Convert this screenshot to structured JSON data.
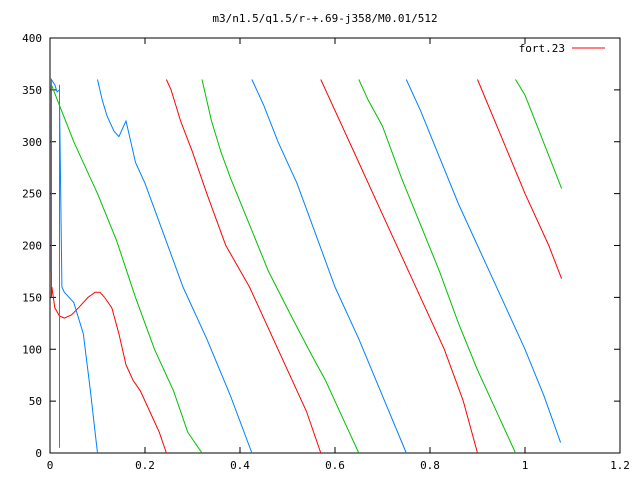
{
  "chart_data": {
    "type": "line",
    "title": "m3/n1.5/q1.5/r-+.69-j358/M0.01/512",
    "xlabel": "",
    "ylabel": "",
    "xlim": [
      0,
      1.2
    ],
    "ylim": [
      0,
      400
    ],
    "xticks": [
      0,
      0.2,
      0.4,
      0.6,
      0.8,
      1,
      1.2
    ],
    "xtick_labels": [
      "0",
      "0.2",
      "0.4",
      "0.6",
      "0.8",
      "1",
      "1.2"
    ],
    "yticks": [
      0,
      50,
      100,
      150,
      200,
      250,
      300,
      350,
      400
    ],
    "ytick_labels": [
      "0",
      "50",
      "100",
      "150",
      "200",
      "250",
      "300",
      "350",
      "400"
    ],
    "grid": false,
    "legend_position": "top-right",
    "series": [
      {
        "name": "fort.23",
        "color": "#ff0000",
        "points": [
          [
            0.003,
            355
          ],
          [
            0.003,
            150
          ],
          [
            0.004,
            160
          ],
          [
            0.01,
            140
          ],
          [
            0.02,
            132
          ],
          [
            0.03,
            130
          ],
          [
            0.045,
            133
          ],
          [
            0.06,
            140
          ],
          [
            0.08,
            150
          ],
          [
            0.095,
            155
          ],
          [
            0.105,
            155
          ],
          [
            0.115,
            150
          ],
          [
            0.13,
            140
          ],
          [
            0.145,
            115
          ],
          [
            0.16,
            85
          ],
          [
            0.175,
            70
          ],
          [
            0.19,
            60
          ],
          [
            0.21,
            40
          ],
          [
            0.23,
            20
          ],
          [
            0.245,
            0
          ],
          null,
          [
            0.245,
            360
          ],
          [
            0.255,
            350
          ],
          [
            0.275,
            320
          ],
          [
            0.3,
            290
          ],
          [
            0.33,
            250
          ],
          [
            0.37,
            200
          ],
          [
            0.42,
            160
          ],
          [
            0.48,
            100
          ],
          [
            0.54,
            40
          ],
          [
            0.57,
            0
          ],
          null,
          [
            0.57,
            360
          ],
          [
            0.585,
            345
          ],
          [
            0.61,
            320
          ],
          [
            0.65,
            280
          ],
          [
            0.7,
            230
          ],
          [
            0.76,
            170
          ],
          [
            0.83,
            100
          ],
          [
            0.87,
            50
          ],
          [
            0.9,
            0
          ],
          null,
          [
            0.9,
            360
          ],
          [
            0.95,
            305
          ],
          [
            1.0,
            250
          ],
          [
            1.05,
            200
          ],
          [
            1.077,
            168
          ]
        ]
      },
      {
        "name": "",
        "color": "#00c000",
        "points": [
          [
            0.003,
            355
          ],
          [
            0.02,
            335
          ],
          [
            0.05,
            300
          ],
          [
            0.08,
            270
          ],
          [
            0.1,
            250
          ],
          [
            0.14,
            205
          ],
          [
            0.18,
            150
          ],
          [
            0.22,
            100
          ],
          [
            0.26,
            60
          ],
          [
            0.29,
            20
          ],
          [
            0.32,
            0
          ],
          null,
          [
            0.32,
            360
          ],
          [
            0.34,
            320
          ],
          [
            0.36,
            290
          ],
          [
            0.38,
            265
          ],
          [
            0.42,
            220
          ],
          [
            0.46,
            175
          ],
          [
            0.51,
            130
          ],
          [
            0.55,
            95
          ],
          [
            0.58,
            70
          ],
          [
            0.62,
            30
          ],
          [
            0.65,
            0
          ],
          null,
          [
            0.65,
            360
          ],
          [
            0.67,
            340
          ],
          [
            0.7,
            315
          ],
          [
            0.74,
            265
          ],
          [
            0.78,
            220
          ],
          [
            0.82,
            175
          ],
          [
            0.86,
            125
          ],
          [
            0.9,
            80
          ],
          [
            0.95,
            30
          ],
          [
            0.98,
            0
          ],
          null,
          [
            0.98,
            360
          ],
          [
            1.0,
            345
          ],
          [
            1.03,
            310
          ],
          [
            1.06,
            275
          ],
          [
            1.077,
            255
          ]
        ]
      },
      {
        "name": "",
        "color": "#0080ff",
        "points": [
          [
            0.003,
            175
          ],
          [
            0.003,
            360
          ],
          [
            0.01,
            355
          ],
          [
            0.015,
            348
          ],
          [
            0.02,
            350
          ],
          [
            0.02,
            340
          ],
          [
            0.025,
            160
          ],
          [
            0.03,
            155
          ],
          [
            0.05,
            145
          ],
          [
            0.07,
            115
          ],
          [
            0.085,
            60
          ],
          [
            0.095,
            20
          ],
          [
            0.1,
            0
          ],
          null,
          [
            0.1,
            360
          ],
          [
            0.11,
            340
          ],
          [
            0.12,
            325
          ],
          [
            0.135,
            310
          ],
          [
            0.145,
            305
          ],
          [
            0.155,
            315
          ],
          [
            0.16,
            320
          ],
          [
            0.17,
            300
          ],
          [
            0.18,
            280
          ],
          [
            0.2,
            260
          ],
          [
            0.24,
            210
          ],
          [
            0.28,
            160
          ],
          [
            0.33,
            110
          ],
          [
            0.38,
            55
          ],
          [
            0.425,
            0
          ],
          null,
          [
            0.425,
            360
          ],
          [
            0.45,
            335
          ],
          [
            0.48,
            300
          ],
          [
            0.52,
            260
          ],
          [
            0.56,
            210
          ],
          [
            0.6,
            160
          ],
          [
            0.65,
            110
          ],
          [
            0.7,
            55
          ],
          [
            0.75,
            0
          ],
          null,
          [
            0.75,
            360
          ],
          [
            0.78,
            330
          ],
          [
            0.82,
            285
          ],
          [
            0.86,
            240
          ],
          [
            0.9,
            200
          ],
          [
            0.95,
            150
          ],
          [
            1.0,
            100
          ],
          [
            1.04,
            55
          ],
          [
            1.075,
            10
          ]
        ]
      },
      {
        "name": "",
        "color": "#00c000",
        "points": [
          [
            0.02,
            355
          ],
          [
            0.02,
            5
          ]
        ]
      }
    ]
  }
}
